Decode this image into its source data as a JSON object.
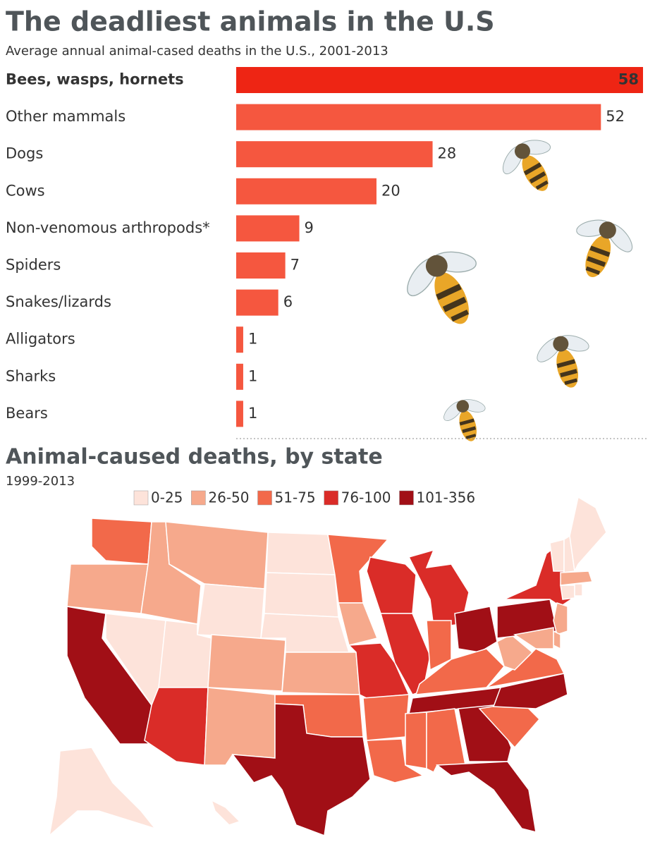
{
  "chart_data": [
    {
      "type": "bar",
      "title": "The deadliest animals in the U.S",
      "subtitle": "Average annual animal-cased deaths in the U.S., 2001-2013",
      "categories": [
        "Bees, wasps, hornets",
        "Other mammals",
        "Dogs",
        "Cows",
        "Non-venomous arthropods*",
        "Spiders",
        "Snakes/lizards",
        "Alligators",
        "Sharks",
        "Bears"
      ],
      "values": [
        58,
        52,
        28,
        20,
        9,
        7,
        6,
        1,
        1,
        1
      ],
      "colors": [
        "#ee2514",
        "#f5573f",
        "#f5573f",
        "#f5573f",
        "#f5573f",
        "#f5573f",
        "#f5573f",
        "#f5573f",
        "#f5573f",
        "#f5573f"
      ]
    },
    {
      "type": "choropleth",
      "title": "Animal-caused deaths, by state",
      "subtitle": "1999-2013",
      "legend": [
        {
          "label": "0-25",
          "color": "#fde3da"
        },
        {
          "label": "26-50",
          "color": "#f6a98c"
        },
        {
          "label": "51-75",
          "color": "#f2694a"
        },
        {
          "label": "76-100",
          "color": "#da2c28"
        },
        {
          "label": "101-356",
          "color": "#a10f16"
        }
      ],
      "region_bins": [
        2,
        1,
        4,
        0,
        1,
        1,
        0,
        0,
        3,
        1,
        1,
        0,
        0,
        0,
        1,
        2,
        4,
        2,
        1,
        3,
        2,
        2,
        3,
        3,
        3,
        2,
        4,
        2,
        4,
        2,
        2,
        4,
        4,
        2,
        4,
        2,
        1,
        4,
        3,
        0,
        0,
        0,
        1,
        0,
        0,
        1,
        1,
        1,
        0,
        0
      ]
    }
  ]
}
